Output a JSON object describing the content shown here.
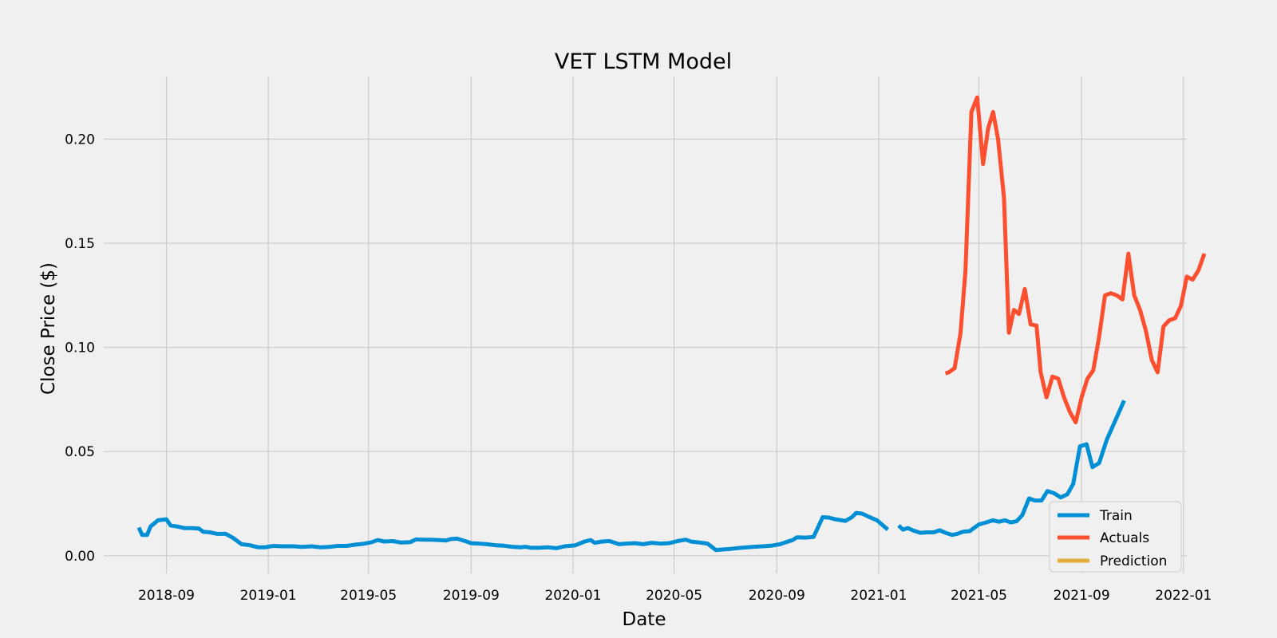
{
  "chart_data": {
    "type": "line",
    "title": "VET LSTM Model",
    "xlabel": "Date",
    "ylabel": "Close Price ($)",
    "xlim": [
      "2018-06-18",
      "2022-01-05"
    ],
    "ylim": [
      -0.0085,
      0.23
    ],
    "grid": true,
    "legend_position": "lower right",
    "x_ticks": [
      "2018-09",
      "2019-01",
      "2019-05",
      "2019-09",
      "2020-01",
      "2020-05",
      "2020-09",
      "2021-01",
      "2021-05",
      "2021-09",
      "2022-01"
    ],
    "y_ticks": [
      "0.00",
      "0.05",
      "0.10",
      "0.15",
      "0.20"
    ],
    "series": [
      {
        "name": "Train",
        "color": "#008fd5",
        "segments": [
          [
            [
              "2018-07-30",
              0.0135
            ],
            [
              "2018-08-03",
              0.01
            ],
            [
              "2018-08-09",
              0.01
            ],
            [
              "2018-08-13",
              0.014
            ],
            [
              "2018-08-22",
              0.017
            ],
            [
              "2018-09-01",
              0.0175
            ],
            [
              "2018-09-06",
              0.0145
            ],
            [
              "2018-09-14",
              0.014
            ],
            [
              "2018-09-22",
              0.0133
            ],
            [
              "2018-10-02",
              0.0132
            ],
            [
              "2018-10-10",
              0.013
            ],
            [
              "2018-10-15",
              0.0115
            ],
            [
              "2018-10-23",
              0.0112
            ],
            [
              "2018-11-01",
              0.0105
            ],
            [
              "2018-11-11",
              0.0105
            ],
            [
              "2018-11-20",
              0.0085
            ],
            [
              "2018-11-30",
              0.0055
            ],
            [
              "2018-12-10",
              0.005
            ],
            [
              "2018-12-20",
              0.004
            ],
            [
              "2018-12-28",
              0.004
            ],
            [
              "2019-01-07",
              0.0047
            ],
            [
              "2019-01-18",
              0.0045
            ],
            [
              "2019-02-01",
              0.0045
            ],
            [
              "2019-02-10",
              0.0042
            ],
            [
              "2019-02-22",
              0.0045
            ],
            [
              "2019-03-05",
              0.004
            ],
            [
              "2019-03-15",
              0.0042
            ],
            [
              "2019-03-25",
              0.0047
            ],
            [
              "2019-04-05",
              0.0047
            ],
            [
              "2019-04-15",
              0.0053
            ],
            [
              "2019-04-25",
              0.0057
            ],
            [
              "2019-05-05",
              0.0065
            ],
            [
              "2019-05-12",
              0.0075
            ],
            [
              "2019-05-20",
              0.0068
            ],
            [
              "2019-05-30",
              0.007
            ],
            [
              "2019-06-09",
              0.0063
            ],
            [
              "2019-06-20",
              0.0065
            ],
            [
              "2019-06-27",
              0.0078
            ],
            [
              "2019-07-07",
              0.0077
            ],
            [
              "2019-07-15",
              0.0077
            ],
            [
              "2019-07-25",
              0.0075
            ],
            [
              "2019-08-02",
              0.0073
            ],
            [
              "2019-08-08",
              0.008
            ],
            [
              "2019-08-15",
              0.0082
            ],
            [
              "2019-08-25",
              0.007
            ],
            [
              "2019-09-01",
              0.006
            ],
            [
              "2019-09-10",
              0.0058
            ],
            [
              "2019-09-20",
              0.0055
            ],
            [
              "2019-09-30",
              0.005
            ],
            [
              "2019-10-10",
              0.0048
            ],
            [
              "2019-10-20",
              0.0043
            ],
            [
              "2019-10-30",
              0.004
            ],
            [
              "2019-11-05",
              0.0043
            ],
            [
              "2019-11-12",
              0.0038
            ],
            [
              "2019-11-22",
              0.0038
            ],
            [
              "2019-12-02",
              0.004
            ],
            [
              "2019-12-12",
              0.0036
            ],
            [
              "2019-12-22",
              0.0045
            ],
            [
              "2020-01-04",
              0.005
            ],
            [
              "2020-01-15",
              0.0068
            ],
            [
              "2020-01-22",
              0.0075
            ],
            [
              "2020-01-27",
              0.0062
            ],
            [
              "2020-02-05",
              0.0068
            ],
            [
              "2020-02-14",
              0.007
            ],
            [
              "2020-02-25",
              0.0055
            ],
            [
              "2020-03-05",
              0.0058
            ],
            [
              "2020-03-15",
              0.006
            ],
            [
              "2020-03-25",
              0.0055
            ],
            [
              "2020-04-04",
              0.0062
            ],
            [
              "2020-04-15",
              0.0058
            ],
            [
              "2020-04-25",
              0.006
            ],
            [
              "2020-05-05",
              0.007
            ],
            [
              "2020-05-15",
              0.0077
            ],
            [
              "2020-05-22",
              0.0067
            ],
            [
              "2020-06-01",
              0.0063
            ],
            [
              "2020-06-10",
              0.0058
            ],
            [
              "2020-06-15",
              0.0043
            ],
            [
              "2020-06-20",
              0.0027
            ],
            [
              "2020-06-28",
              0.003
            ],
            [
              "2020-07-08",
              0.0033
            ],
            [
              "2020-07-18",
              0.0037
            ],
            [
              "2020-07-28",
              0.004
            ],
            [
              "2020-08-05",
              0.0043
            ],
            [
              "2020-08-15",
              0.0045
            ],
            [
              "2020-08-25",
              0.0048
            ],
            [
              "2020-09-05",
              0.0055
            ],
            [
              "2020-09-12",
              0.0065
            ],
            [
              "2020-09-20",
              0.0075
            ],
            [
              "2020-09-25",
              0.0088
            ],
            [
              "2020-10-05",
              0.0087
            ],
            [
              "2020-10-15",
              0.009
            ],
            [
              "2020-10-26",
              0.0185
            ],
            [
              "2020-11-02",
              0.0183
            ],
            [
              "2020-11-10",
              0.0175
            ],
            [
              "2020-11-22",
              0.0167
            ],
            [
              "2020-11-30",
              0.0185
            ],
            [
              "2020-12-05",
              0.0205
            ],
            [
              "2020-12-12",
              0.0202
            ],
            [
              "2020-12-20",
              0.0187
            ],
            [
              "2020-12-30",
              0.017
            ],
            [
              "2021-01-12",
              0.0125
            ]
          ],
          [
            [
              "2021-01-25",
              0.0145
            ],
            [
              "2021-01-30",
              0.0125
            ],
            [
              "2021-02-05",
              0.0133
            ],
            [
              "2021-02-12",
              0.012
            ],
            [
              "2021-02-20",
              0.011
            ],
            [
              "2021-02-28",
              0.0112
            ],
            [
              "2021-03-08",
              0.0112
            ],
            [
              "2021-03-15",
              0.0122
            ],
            [
              "2021-03-22",
              0.011
            ],
            [
              "2021-03-30",
              0.01
            ],
            [
              "2021-04-05",
              0.0105
            ],
            [
              "2021-04-12",
              0.0115
            ],
            [
              "2021-04-20",
              0.0118
            ],
            [
              "2021-05-01",
              0.015
            ],
            [
              "2021-05-10",
              0.016
            ],
            [
              "2021-05-18",
              0.017
            ],
            [
              "2021-05-25",
              0.0163
            ],
            [
              "2021-06-01",
              0.017
            ],
            [
              "2021-06-08",
              0.016
            ],
            [
              "2021-06-15",
              0.0165
            ],
            [
              "2021-06-22",
              0.0195
            ],
            [
              "2021-06-30",
              0.0275
            ],
            [
              "2021-07-07",
              0.0265
            ],
            [
              "2021-07-15",
              0.0265
            ],
            [
              "2021-07-22",
              0.031
            ],
            [
              "2021-07-30",
              0.03
            ],
            [
              "2021-08-07",
              0.028
            ],
            [
              "2021-08-15",
              0.0295
            ],
            [
              "2021-08-22",
              0.0345
            ],
            [
              "2021-08-30",
              0.0525
            ],
            [
              "2021-09-07",
              0.0535
            ],
            [
              "2021-09-14",
              0.0425
            ],
            [
              "2021-09-22",
              0.0445
            ],
            [
              "2021-10-01",
              0.0555
            ],
            [
              "2021-10-22",
              0.0745
            ]
          ]
        ]
      },
      {
        "name": "Actuals",
        "color": "#fc4f30",
        "segments": [
          [
            [
              "2021-03-22",
              0.0875
            ],
            [
              "2021-03-26",
              0.088
            ],
            [
              "2021-04-02",
              0.09
            ],
            [
              "2021-04-09",
              0.107
            ],
            [
              "2021-04-15",
              0.137
            ],
            [
              "2021-04-22",
              0.213
            ],
            [
              "2021-04-29",
              0.22
            ],
            [
              "2021-05-06",
              0.188
            ],
            [
              "2021-05-12",
              0.205
            ],
            [
              "2021-05-18",
              0.213
            ],
            [
              "2021-05-24",
              0.2
            ],
            [
              "2021-05-31",
              0.172
            ],
            [
              "2021-06-06",
              0.107
            ],
            [
              "2021-06-12",
              0.118
            ],
            [
              "2021-06-18",
              0.116
            ],
            [
              "2021-06-25",
              0.128
            ],
            [
              "2021-07-02",
              0.111
            ],
            [
              "2021-07-09",
              0.1105
            ],
            [
              "2021-07-14",
              0.088
            ],
            [
              "2021-07-21",
              0.076
            ],
            [
              "2021-07-28",
              0.086
            ],
            [
              "2021-08-04",
              0.085
            ],
            [
              "2021-08-11",
              0.076
            ],
            [
              "2021-08-18",
              0.069
            ],
            [
              "2021-08-25",
              0.064
            ],
            [
              "2021-09-01",
              0.076
            ],
            [
              "2021-09-08",
              0.085
            ],
            [
              "2021-09-15",
              0.089
            ],
            [
              "2021-09-22",
              0.105
            ],
            [
              "2021-09-29",
              0.125
            ],
            [
              "2021-10-06",
              0.126
            ],
            [
              "2021-10-13",
              0.125
            ],
            [
              "2021-10-20",
              0.123
            ],
            [
              "2021-10-27",
              0.145
            ],
            [
              "2021-11-03",
              0.125
            ],
            [
              "2021-11-10",
              0.118
            ],
            [
              "2021-11-17",
              0.108
            ],
            [
              "2021-11-24",
              0.094
            ],
            [
              "2021-12-01",
              0.088
            ],
            [
              "2021-12-08",
              0.11
            ],
            [
              "2021-12-15",
              0.113
            ],
            [
              "2021-12-22",
              0.114
            ],
            [
              "2021-12-29",
              0.12
            ],
            [
              "2022-01-05",
              0.134
            ],
            [
              "2022-01-12",
              0.1325
            ],
            [
              "2022-01-19",
              0.137
            ],
            [
              "2022-01-26",
              0.145
            ]
          ]
        ]
      },
      {
        "name": "Prediction",
        "color": "#e5ae38",
        "segments": []
      }
    ]
  }
}
